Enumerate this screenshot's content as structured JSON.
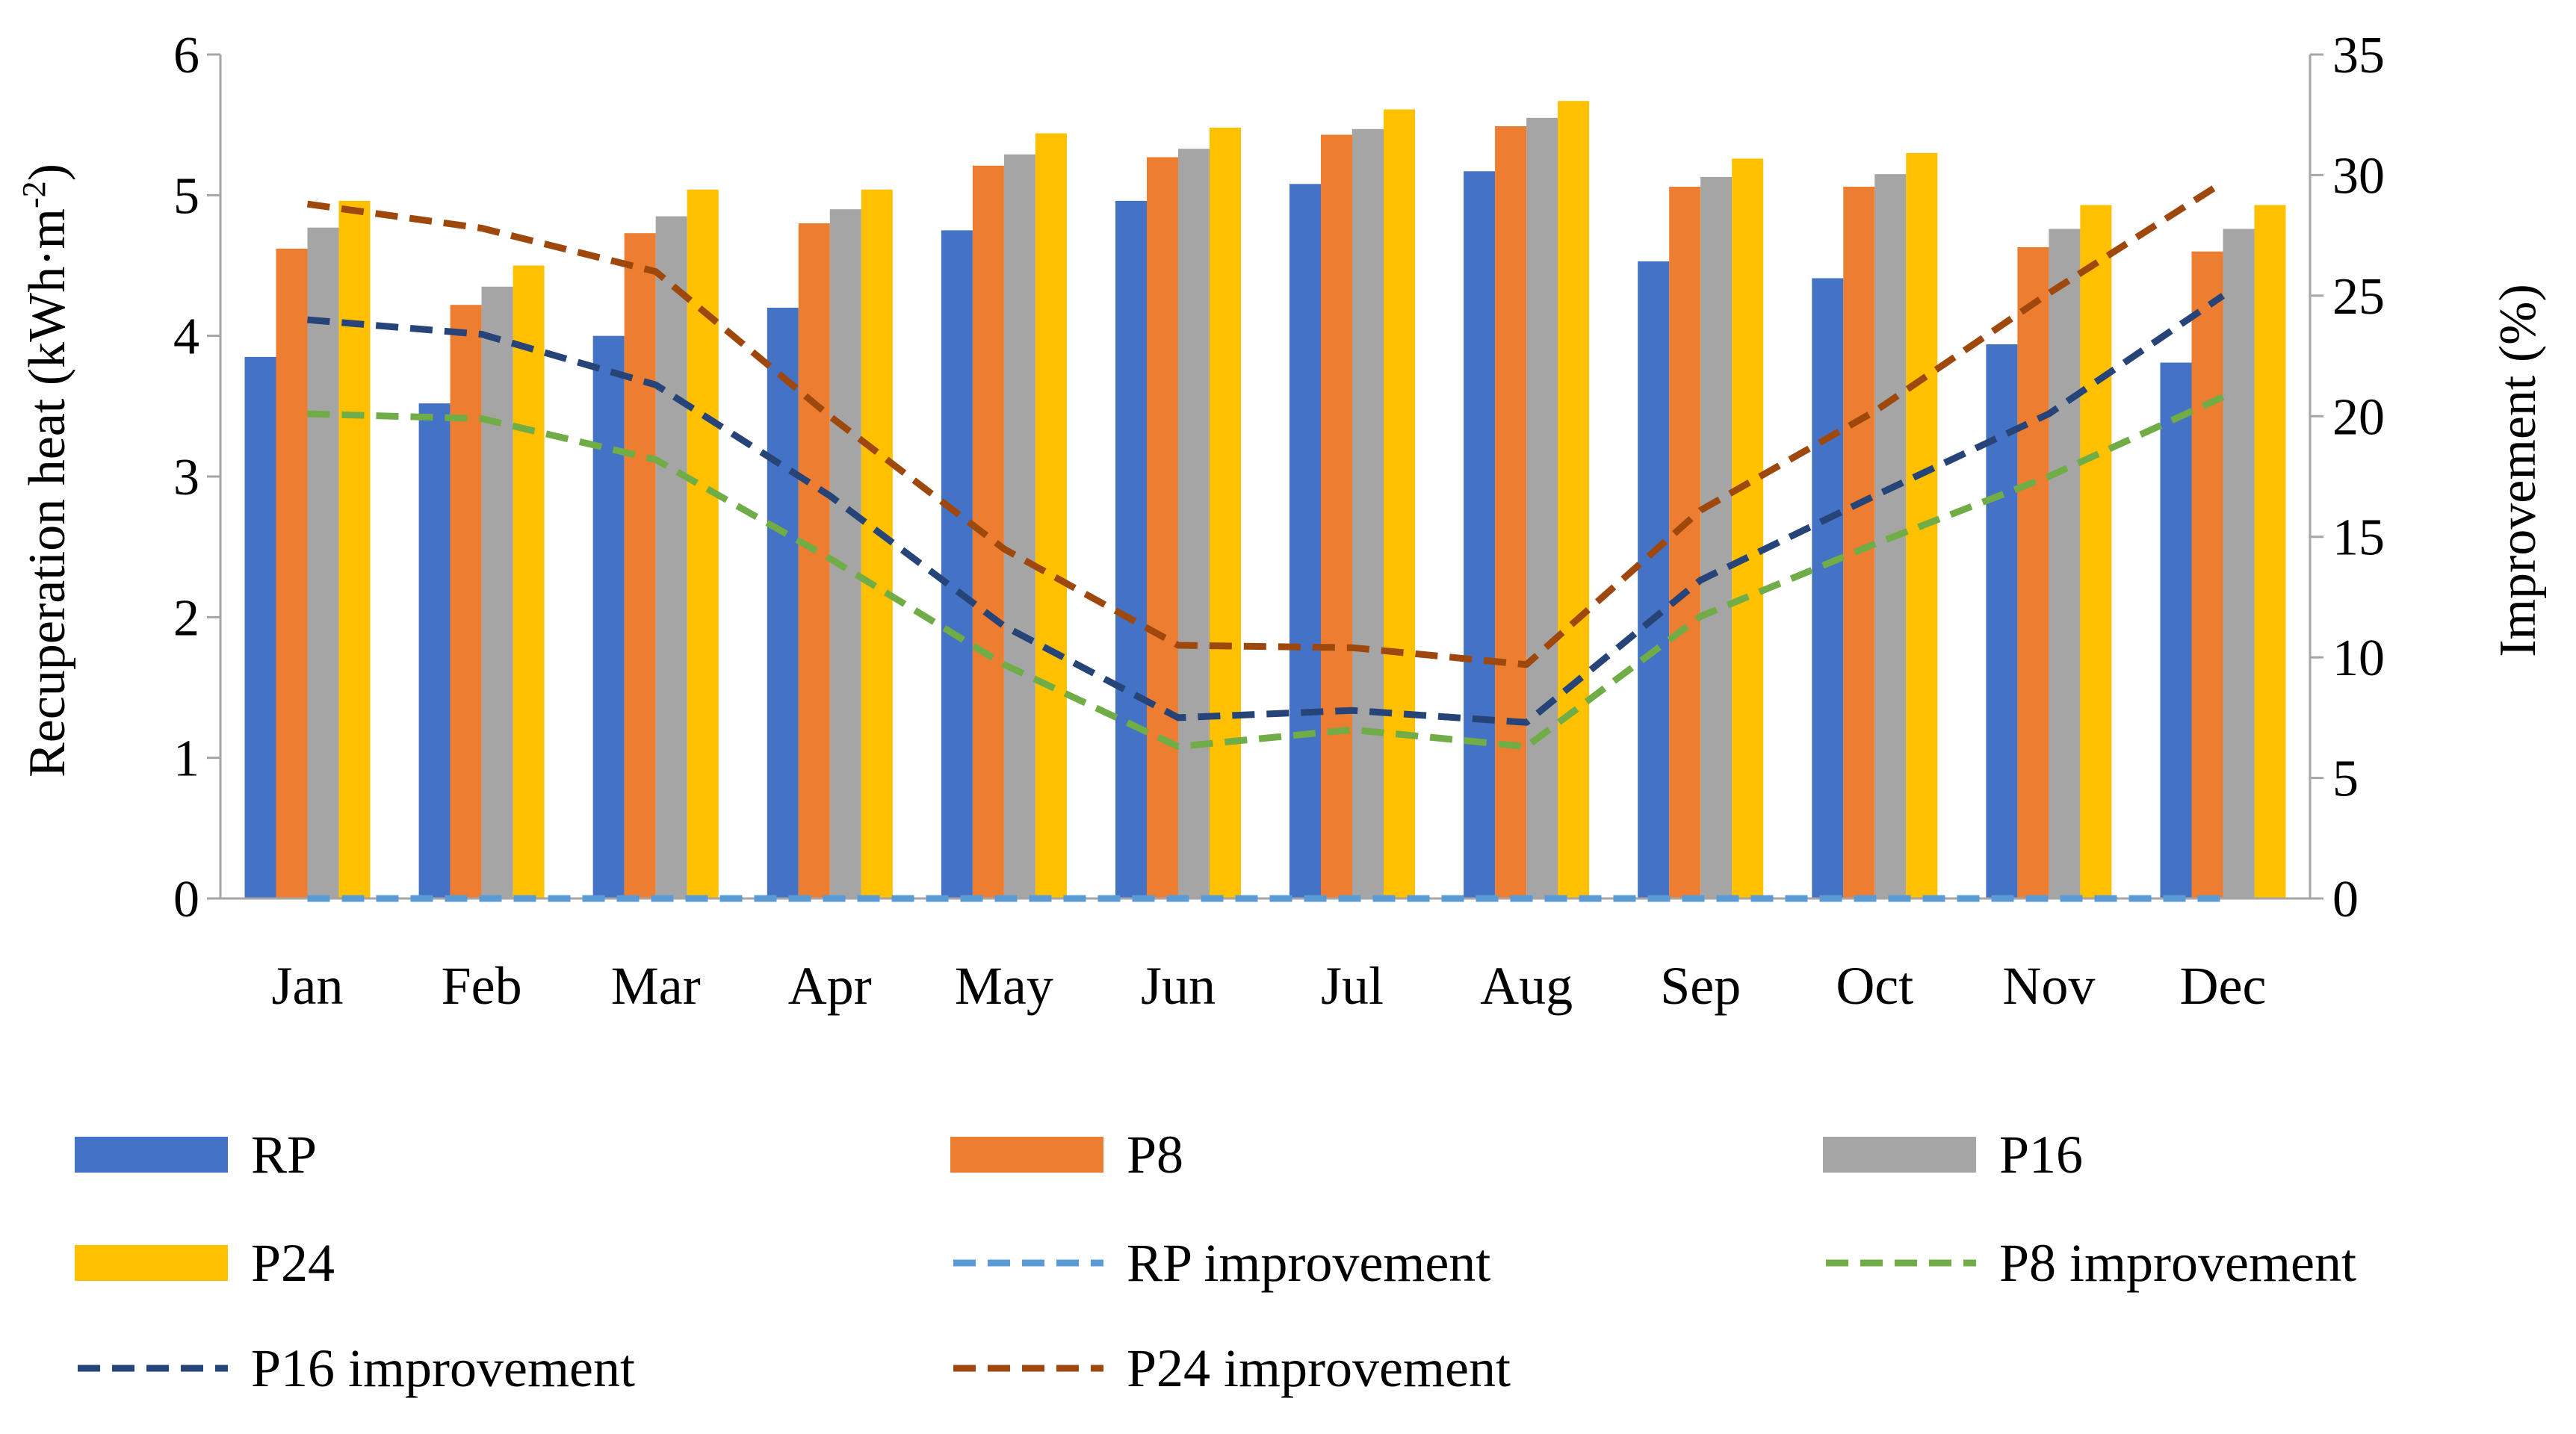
{
  "chart_data": {
    "type": "bar",
    "categories": [
      "Jan",
      "Feb",
      "Mar",
      "Apr",
      "May",
      "Jun",
      "Jul",
      "Aug",
      "Sep",
      "Oct",
      "Nov",
      "Dec"
    ],
    "ylabel": "Recuperation heat (kWh·m⁻²)",
    "ylabel_parts": [
      "Recuperation heat (kWh·m",
      "-2",
      ")"
    ],
    "y2label": "Improvement (%)",
    "ylim": [
      0,
      6
    ],
    "y2lim": [
      0,
      35
    ],
    "yticks": [
      "0",
      "1",
      "2",
      "3",
      "4",
      "5",
      "6"
    ],
    "y2ticks": [
      "0",
      "5",
      "10",
      "15",
      "20",
      "25",
      "30",
      "35"
    ],
    "grid": false,
    "legend_position": "bottom",
    "bar_series": [
      {
        "name": "RP",
        "color": "#4472C4",
        "values": [
          3.85,
          3.52,
          4.0,
          4.2,
          4.75,
          4.96,
          5.08,
          5.17,
          4.53,
          4.41,
          3.94,
          3.81
        ]
      },
      {
        "name": "P8",
        "color": "#ED7D31",
        "values": [
          4.62,
          4.22,
          4.73,
          4.8,
          5.21,
          5.27,
          5.43,
          5.49,
          5.06,
          5.06,
          4.63,
          4.6
        ]
      },
      {
        "name": "P16",
        "color": "#A5A5A5",
        "values": [
          4.77,
          4.35,
          4.85,
          4.9,
          5.29,
          5.33,
          5.47,
          5.55,
          5.13,
          5.15,
          4.76,
          4.76
        ]
      },
      {
        "name": "P24",
        "color": "#FFC000",
        "values": [
          4.96,
          4.5,
          5.04,
          5.04,
          5.44,
          5.48,
          5.61,
          5.67,
          5.26,
          5.3,
          4.93,
          4.93
        ]
      }
    ],
    "line_series": [
      {
        "name": "RP improvement",
        "color": "#5B9BD5",
        "axis": "right",
        "values": [
          0,
          0,
          0,
          0,
          0,
          0,
          0,
          0,
          0,
          0,
          0,
          0
        ]
      },
      {
        "name": "P8 improvement",
        "color": "#70AD47",
        "axis": "right",
        "values": [
          20.1,
          19.9,
          18.2,
          14.1,
          9.7,
          6.3,
          7.0,
          6.3,
          11.7,
          14.7,
          17.5,
          20.8
        ]
      },
      {
        "name": "P16 improvement",
        "color": "#264478",
        "axis": "right",
        "values": [
          24.0,
          23.4,
          21.3,
          16.7,
          11.3,
          7.5,
          7.8,
          7.3,
          13.2,
          16.7,
          20.1,
          25.0
        ]
      },
      {
        "name": "P24 improvement",
        "color": "#9E480E",
        "axis": "right",
        "values": [
          28.8,
          27.8,
          26.0,
          20.0,
          14.5,
          10.5,
          10.4,
          9.7,
          16.1,
          20.2,
          25.1,
          29.7
        ]
      }
    ]
  }
}
